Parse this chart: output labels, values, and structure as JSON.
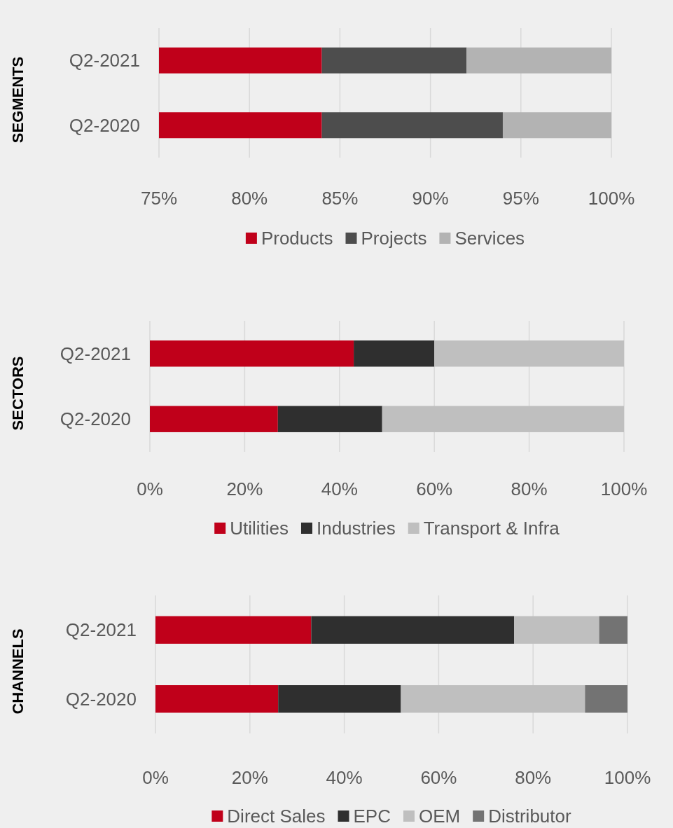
{
  "chart_data": [
    {
      "type": "bar",
      "orientation": "horizontal",
      "ylabel": "SEGMENTS",
      "categories": [
        "Q2-2021",
        "Q2-2020"
      ],
      "series": [
        {
          "name": "Products",
          "color": "#c0001a",
          "base": [
            0,
            0
          ],
          "values": [
            84,
            84
          ]
        },
        {
          "name": "Projects",
          "color": "#4d4d4d",
          "base": [
            84,
            84
          ],
          "values": [
            8,
            10
          ]
        },
        {
          "name": "Services",
          "color": "#b3b3b3",
          "base": [
            92,
            94
          ],
          "values": [
            8,
            6
          ]
        }
      ],
      "xlim": [
        75,
        100
      ],
      "xticks": [
        {
          "value": 75,
          "label": "75%"
        },
        {
          "value": 80,
          "label": "80%"
        },
        {
          "value": 85,
          "label": "85%"
        },
        {
          "value": 90,
          "label": "90%"
        },
        {
          "value": 95,
          "label": "95%"
        },
        {
          "value": 100,
          "label": "100%"
        }
      ],
      "grid": "x",
      "legend": "bottom"
    },
    {
      "type": "bar",
      "orientation": "horizontal",
      "stacked": true,
      "ylabel": "SECTORS",
      "categories": [
        "Q2-2021",
        "Q2-2020"
      ],
      "series": [
        {
          "name": "Utilities",
          "color": "#c0001a",
          "values": [
            43,
            27
          ]
        },
        {
          "name": "Industries",
          "color": "#2f2f2f",
          "values": [
            17,
            22
          ]
        },
        {
          "name": "Transport & Infra",
          "color": "#bfbfbf",
          "values": [
            40,
            51
          ]
        }
      ],
      "xlim": [
        0,
        100
      ],
      "xticks": [
        {
          "value": 0,
          "label": "0%"
        },
        {
          "value": 20,
          "label": "20%"
        },
        {
          "value": 40,
          "label": "40%"
        },
        {
          "value": 60,
          "label": "60%"
        },
        {
          "value": 80,
          "label": "80%"
        },
        {
          "value": 100,
          "label": "100%"
        }
      ],
      "grid": "x",
      "legend": "bottom"
    },
    {
      "type": "bar",
      "orientation": "horizontal",
      "stacked": true,
      "ylabel": "CHANNELS",
      "categories": [
        "Q2-2021",
        "Q2-2020"
      ],
      "series": [
        {
          "name": "Direct Sales",
          "color": "#c0001a",
          "values": [
            33,
            26
          ]
        },
        {
          "name": "EPC",
          "color": "#2f2f2f",
          "values": [
            43,
            26
          ]
        },
        {
          "name": "OEM",
          "color": "#bfbfbf",
          "values": [
            18,
            39
          ]
        },
        {
          "name": "Distributor",
          "color": "#737373",
          "values": [
            6,
            9
          ]
        }
      ],
      "xlim": [
        0,
        100
      ],
      "xticks": [
        {
          "value": 0,
          "label": "0%"
        },
        {
          "value": 20,
          "label": "20%"
        },
        {
          "value": 40,
          "label": "40%"
        },
        {
          "value": 60,
          "label": "60%"
        },
        {
          "value": 80,
          "label": "80%"
        },
        {
          "value": 100,
          "label": "100%"
        }
      ],
      "grid": "x",
      "legend": "bottom"
    }
  ]
}
